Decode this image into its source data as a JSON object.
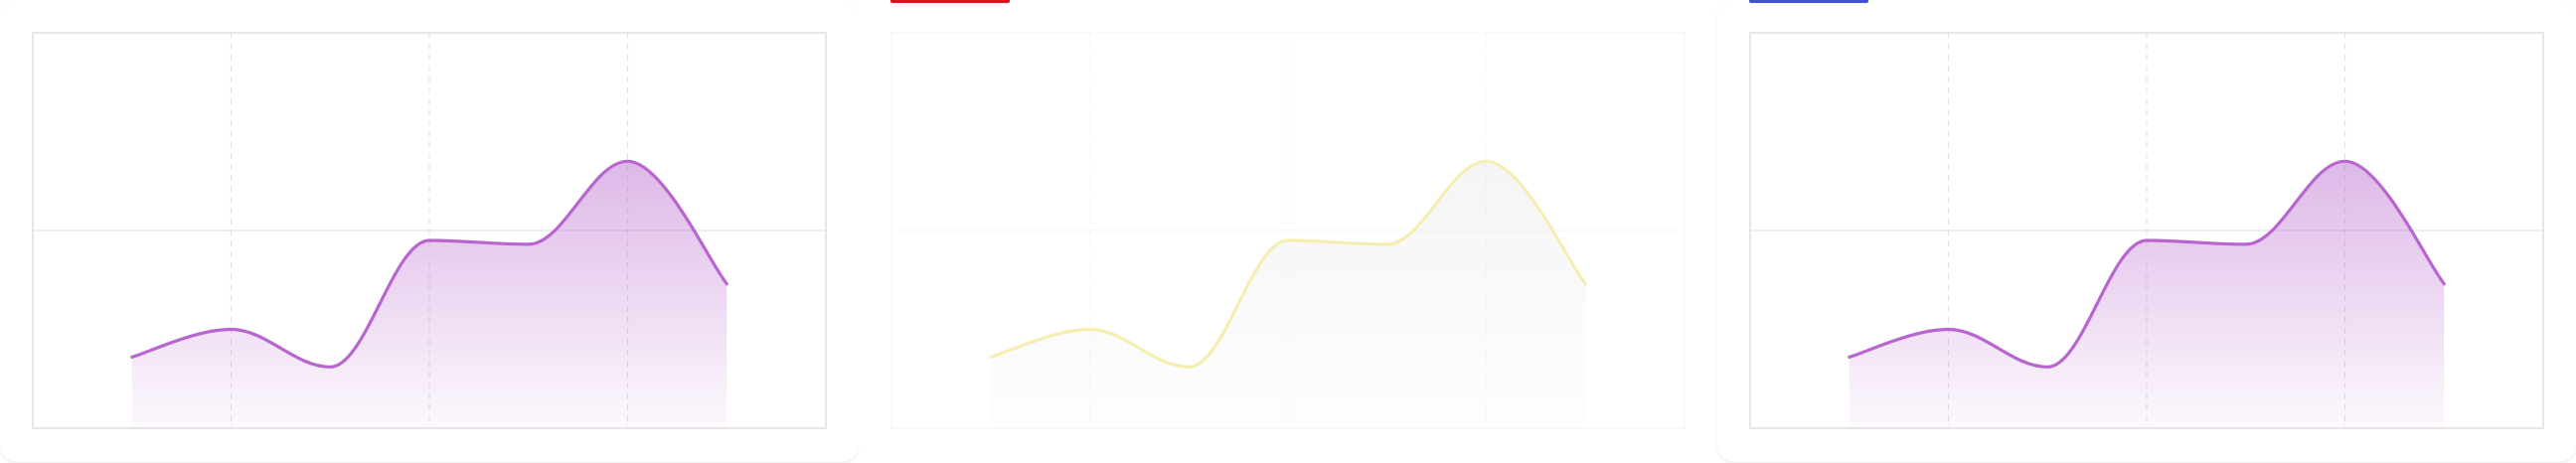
{
  "cards": [
    {
      "id": "chart-card-1",
      "accent": ""
    },
    {
      "id": "chart-card-2",
      "accent": "#d6141c"
    },
    {
      "id": "chart-card-3",
      "accent": "#3f51d6"
    }
  ],
  "chart_data": [
    {
      "type": "area",
      "x": [
        0.5,
        1,
        1.5,
        2,
        2.5,
        3,
        3.5
      ],
      "values": [
        36,
        50,
        31,
        95,
        93,
        135,
        73
      ],
      "xlim": [
        0,
        4
      ],
      "ylim": [
        0,
        200
      ],
      "grid": true,
      "line_color": "#b865cf",
      "fill_color": "#c27ed4",
      "fill_opacity_top": 0.55,
      "fill_opacity_bottom": 0.05
    },
    {
      "type": "area",
      "x": [
        0.5,
        1,
        1.5,
        2,
        2.5,
        3,
        3.5
      ],
      "values": [
        36,
        50,
        31,
        95,
        93,
        135,
        73
      ],
      "xlim": [
        0,
        4
      ],
      "ylim": [
        0,
        200
      ],
      "grid": true,
      "line_color": "#f5eeb0",
      "fill_color": "#e2e2e2",
      "fill_opacity_top": 0.35,
      "fill_opacity_bottom": 0.05,
      "faded": true
    },
    {
      "type": "area",
      "x": [
        0.5,
        1,
        1.5,
        2,
        2.5,
        3,
        3.5
      ],
      "values": [
        36,
        50,
        31,
        95,
        93,
        135,
        73
      ],
      "xlim": [
        0,
        4
      ],
      "ylim": [
        0,
        200
      ],
      "grid": true,
      "line_color": "#b865cf",
      "fill_color": "#c27ed4",
      "fill_opacity_top": 0.55,
      "fill_opacity_bottom": 0.05
    }
  ]
}
